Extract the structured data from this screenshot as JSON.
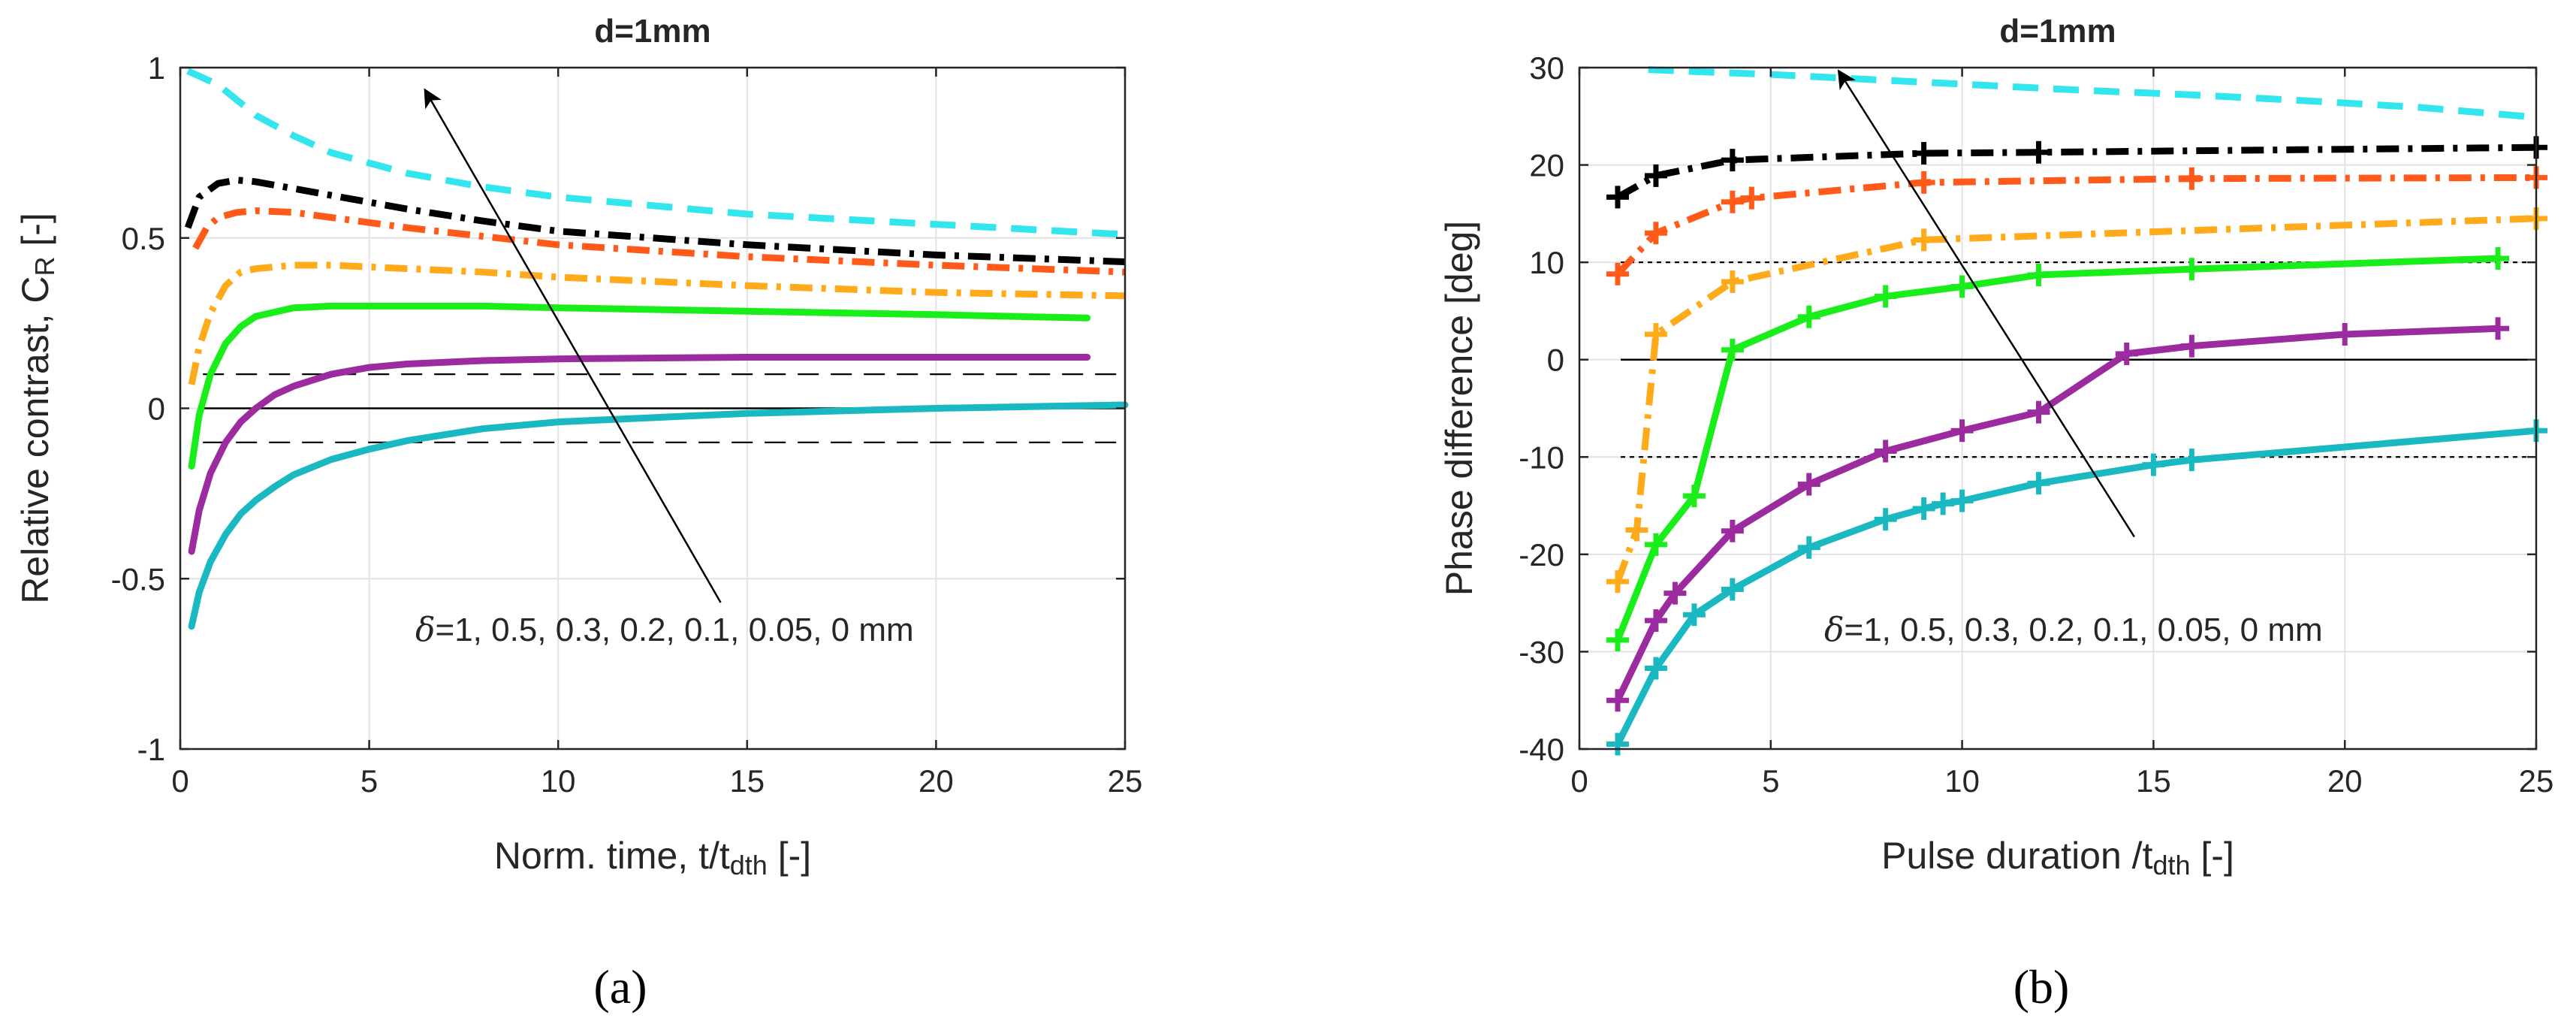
{
  "chart_data": [
    {
      "type": "line",
      "title": "d=1mm",
      "panel_label": "(a)",
      "xlabel_main": "Norm. time, t/t",
      "xlabel_sub": "dth",
      "xlabel_tail": " [-]",
      "ylabel_main": "Relative contrast, C",
      "ylabel_sub": "R",
      "ylabel_tail": " [-]",
      "xlim": [
        0,
        25
      ],
      "ylim": [
        -1,
        1
      ],
      "xticks": [
        0,
        5,
        10,
        15,
        20,
        25
      ],
      "yticks": [
        -1,
        -0.5,
        0,
        0.5,
        1
      ],
      "xtick_labels": [
        "0",
        "5",
        "10",
        "15",
        "20",
        "25"
      ],
      "ytick_labels": [
        "-1",
        "-0.5",
        "0",
        "0.5",
        "1"
      ],
      "grid": true,
      "reference_lines": [
        {
          "y": 0,
          "style": "solid"
        },
        {
          "y": 0.1,
          "style": "dashed"
        },
        {
          "y": -0.1,
          "style": "dashed"
        }
      ],
      "annotation": {
        "text_delta": "δ",
        "text": "=1, 0.5, 0.3, 0.2, 0.1, 0.05, 0 mm",
        "arrow_from": [
          14.3,
          -0.57
        ],
        "arrow_to": [
          6.5,
          0.93
        ]
      },
      "series": [
        {
          "name": "δ=1 mm",
          "color": "#33e6ee",
          "style": "dashed",
          "markers": false,
          "x": [
            0.2,
            1,
            2,
            3,
            4,
            6,
            8,
            10,
            15,
            20,
            25
          ],
          "y": [
            0.99,
            0.95,
            0.86,
            0.8,
            0.75,
            0.69,
            0.65,
            0.62,
            0.57,
            0.54,
            0.51
          ]
        },
        {
          "name": "δ=0.5 mm",
          "color": "#000000",
          "style": "dashdot",
          "markers": false,
          "x": [
            0.2,
            0.5,
            1,
            1.5,
            2,
            3,
            4,
            6,
            8,
            10,
            15,
            20,
            25
          ],
          "y": [
            0.53,
            0.62,
            0.66,
            0.67,
            0.665,
            0.645,
            0.625,
            0.585,
            0.55,
            0.52,
            0.48,
            0.45,
            0.43
          ]
        },
        {
          "name": "δ=0.3 mm",
          "color": "#ff5a1a",
          "style": "dashdot",
          "markers": false,
          "x": [
            0.4,
            0.7,
            1,
            1.5,
            2,
            3,
            4,
            6,
            8,
            10,
            15,
            20,
            25
          ],
          "y": [
            0.47,
            0.53,
            0.56,
            0.575,
            0.58,
            0.575,
            0.56,
            0.53,
            0.505,
            0.48,
            0.445,
            0.42,
            0.4
          ]
        },
        {
          "name": "δ=0.2 mm",
          "color": "#ffaa1a",
          "style": "dashdot",
          "markers": false,
          "x": [
            0.3,
            0.5,
            0.8,
            1.2,
            1.6,
            2,
            3,
            4,
            6,
            8,
            10,
            15,
            20,
            25
          ],
          "y": [
            0.07,
            0.18,
            0.28,
            0.36,
            0.4,
            0.41,
            0.42,
            0.42,
            0.41,
            0.4,
            0.385,
            0.36,
            0.34,
            0.33
          ]
        },
        {
          "name": "δ=0.1 mm",
          "color": "#1aee1a",
          "style": "solid",
          "markers": false,
          "x": [
            0.3,
            0.5,
            0.8,
            1.2,
            1.6,
            2,
            3,
            4,
            6,
            8,
            10,
            15,
            20,
            24
          ],
          "y": [
            -0.17,
            -0.02,
            0.1,
            0.19,
            0.24,
            0.27,
            0.295,
            0.3,
            0.3,
            0.3,
            0.295,
            0.285,
            0.275,
            0.265
          ]
        },
        {
          "name": "δ=0.05 mm",
          "color": "#9b2b9e",
          "style": "solid",
          "markers": false,
          "x": [
            0.3,
            0.5,
            0.8,
            1.2,
            1.6,
            2,
            2.5,
            3,
            4,
            5,
            6,
            8,
            10,
            15,
            20,
            24
          ],
          "y": [
            -0.42,
            -0.3,
            -0.19,
            -0.1,
            -0.04,
            0.0,
            0.04,
            0.065,
            0.1,
            0.12,
            0.13,
            0.14,
            0.145,
            0.15,
            0.15,
            0.15
          ]
        },
        {
          "name": "δ=0 mm",
          "color": "#1ab8c0",
          "style": "solid",
          "markers": false,
          "x": [
            0.3,
            0.5,
            0.8,
            1.2,
            1.6,
            2,
            2.5,
            3,
            4,
            5,
            6,
            8,
            10,
            15,
            20,
            25
          ],
          "y": [
            -0.64,
            -0.54,
            -0.45,
            -0.37,
            -0.31,
            -0.27,
            -0.23,
            -0.195,
            -0.15,
            -0.12,
            -0.095,
            -0.06,
            -0.04,
            -0.015,
            0.0,
            0.01
          ]
        }
      ]
    },
    {
      "type": "line",
      "title": "d=1mm",
      "panel_label": "(b)",
      "xlabel_main": "Pulse duration /t",
      "xlabel_sub": "dth",
      "xlabel_tail": " [-]",
      "ylabel_main": "Phase difference [deg]",
      "ylabel_sub": "",
      "ylabel_tail": "",
      "xlim": [
        0,
        25
      ],
      "ylim": [
        -40,
        30
      ],
      "xticks": [
        0,
        5,
        10,
        15,
        20,
        25
      ],
      "yticks": [
        -40,
        -30,
        -20,
        -10,
        0,
        10,
        20,
        30
      ],
      "xtick_labels": [
        "0",
        "5",
        "10",
        "15",
        "20",
        "25"
      ],
      "ytick_labels": [
        "-40",
        "-30",
        "-20",
        "-10",
        "0",
        "10",
        "20",
        "30"
      ],
      "grid": true,
      "reference_lines": [
        {
          "y": 0,
          "style": "solid"
        },
        {
          "y": 10,
          "style": "dotted"
        },
        {
          "y": -10,
          "style": "dotted"
        }
      ],
      "annotation": {
        "text_delta": "δ",
        "text": "=1, 0.5, 0.3, 0.2, 0.1, 0.05, 0 mm",
        "arrow_from": [
          14.5,
          -18.2
        ],
        "arrow_to": [
          6.8,
          29.5
        ]
      },
      "series": [
        {
          "name": "δ=1 mm",
          "color": "#33e6ee",
          "style": "dashed",
          "markers": false,
          "x": [
            1.8,
            3,
            5,
            7,
            10,
            13,
            16,
            19,
            22,
            25
          ],
          "y": [
            29.8,
            29.6,
            29.3,
            28.9,
            28.3,
            27.7,
            27.2,
            26.6,
            25.9,
            24.9
          ]
        },
        {
          "name": "δ=0.5 mm",
          "color": "#000000",
          "style": "dashdot",
          "markers": true,
          "x": [
            1,
            2,
            4,
            9,
            12,
            25
          ],
          "y": [
            16.7,
            18.9,
            20.5,
            21.2,
            21.3,
            21.8
          ]
        },
        {
          "name": "δ=0.3 mm",
          "color": "#ff5a1a",
          "style": "dashdot",
          "markers": true,
          "x": [
            1,
            2,
            4,
            4.5,
            9,
            16,
            25
          ],
          "y": [
            8.8,
            13.0,
            16.2,
            16.6,
            18.2,
            18.6,
            18.7
          ]
        },
        {
          "name": "δ=0.2 mm",
          "color": "#ffaa1a",
          "style": "dashdot",
          "markers": true,
          "x": [
            1,
            1.5,
            2,
            4,
            9,
            25
          ],
          "y": [
            -22.8,
            -17.5,
            2.6,
            8.0,
            12.3,
            14.5
          ]
        },
        {
          "name": "δ=0.1 mm",
          "color": "#1aee1a",
          "style": "solid",
          "markers": true,
          "x": [
            1,
            2,
            3,
            4,
            6,
            8,
            10,
            12,
            16,
            24
          ],
          "y": [
            -28.8,
            -19.0,
            -14.0,
            1.0,
            4.4,
            6.5,
            7.5,
            8.7,
            9.3,
            10.4
          ]
        },
        {
          "name": "δ=0.05 mm",
          "color": "#9b2b9e",
          "style": "solid",
          "markers": true,
          "x": [
            1,
            2,
            2.5,
            4,
            6,
            8,
            10,
            12,
            14.3,
            16,
            20,
            24
          ],
          "y": [
            -35.0,
            -26.8,
            -24.0,
            -17.6,
            -12.8,
            -9.4,
            -7.3,
            -5.4,
            0.6,
            1.4,
            2.6,
            3.2
          ]
        },
        {
          "name": "δ=0 mm",
          "color": "#1ab8c0",
          "style": "solid",
          "markers": true,
          "x": [
            1,
            2,
            3,
            4,
            6,
            8,
            9,
            9.5,
            10,
            12,
            15,
            16,
            25
          ],
          "y": [
            -39.5,
            -31.7,
            -26.2,
            -23.6,
            -19.3,
            -16.4,
            -15.3,
            -14.8,
            -14.5,
            -12.7,
            -10.8,
            -10.3,
            -7.3
          ]
        }
      ]
    }
  ]
}
